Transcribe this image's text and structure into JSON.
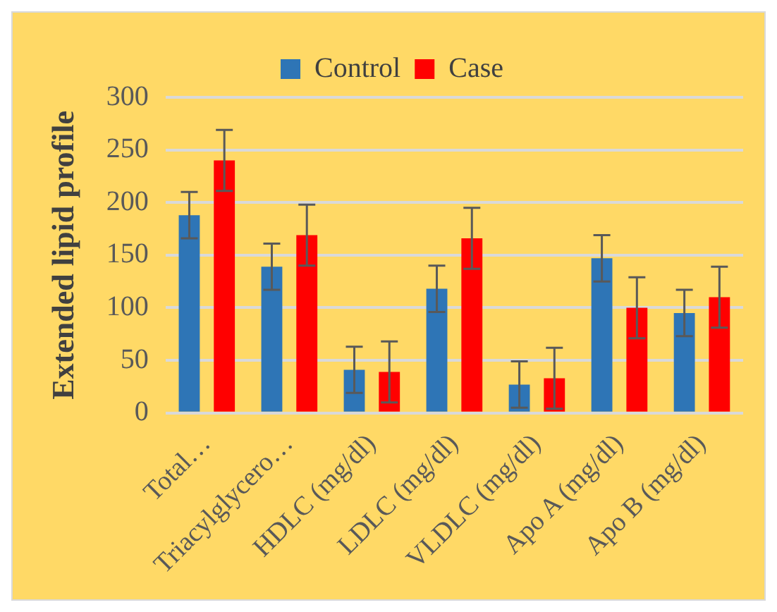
{
  "chart_data": {
    "type": "bar",
    "ylabel": "Extended lipid profile",
    "categories": [
      "Total…",
      "Triacylglycero…",
      "HDLC (mg/dl)",
      "LDLC (mg/dl)",
      "VLDLC (mg/dl)",
      "Apo A (mg/dl)",
      "Apo B (mg/dl)"
    ],
    "series": [
      {
        "name": "Control",
        "color": "#2e75b6",
        "values": [
          188,
          139,
          41,
          118,
          27,
          147,
          95
        ],
        "errors": [
          22,
          22,
          22,
          22,
          22,
          22,
          22
        ]
      },
      {
        "name": "Case",
        "color": "#ff0000",
        "values": [
          240,
          169,
          39,
          166,
          33,
          100,
          110
        ],
        "errors": [
          29,
          29,
          29,
          29,
          29,
          29,
          29
        ]
      }
    ],
    "ylim": [
      0,
      300
    ],
    "yticks": [
      0,
      50,
      100,
      150,
      200,
      250,
      300
    ],
    "grid": "y",
    "legend": "top"
  }
}
